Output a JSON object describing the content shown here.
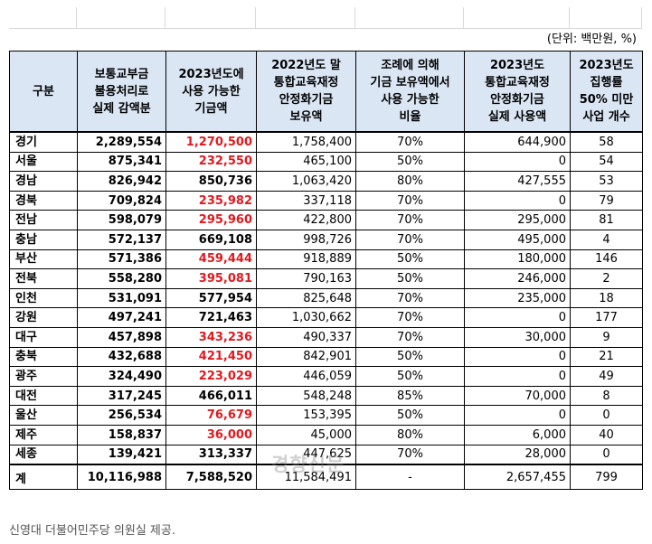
{
  "unit_note": "(단위: 백만원, %)",
  "columns": [
    {
      "key": "region",
      "lines": [
        "구분"
      ]
    },
    {
      "key": "c1",
      "lines": [
        "보통교부금",
        "불용처리로",
        "실제 감액분"
      ]
    },
    {
      "key": "c2",
      "lines": [
        "2023년도에",
        "사용 가능한",
        "기금액"
      ]
    },
    {
      "key": "c3",
      "lines": [
        "2022년도 말",
        "통합교육재정",
        "안정화기금",
        "보유액"
      ]
    },
    {
      "key": "c4",
      "lines": [
        "조례에 의해",
        "기금 보유액에서",
        "사용 가능한",
        "비율"
      ]
    },
    {
      "key": "c5",
      "lines": [
        "2023년도",
        "통합교육재정",
        "안정화기금",
        "실제 사용액"
      ]
    },
    {
      "key": "c6",
      "lines": [
        "2023년도",
        "집행률",
        "50% 미만",
        "사업 개수"
      ]
    }
  ],
  "rows": [
    {
      "region": "경기",
      "c1": "2,289,554",
      "c2": "1,270,500",
      "c2_red": true,
      "c3": "1,758,400",
      "c4": "70%",
      "c5": "644,900",
      "c6": "58"
    },
    {
      "region": "서울",
      "c1": "875,341",
      "c2": "232,550",
      "c2_red": true,
      "c3": "465,100",
      "c4": "50%",
      "c5": "0",
      "c6": "54"
    },
    {
      "region": "경남",
      "c1": "826,942",
      "c2": "850,736",
      "c2_red": false,
      "c3": "1,063,420",
      "c4": "80%",
      "c5": "427,555",
      "c6": "53"
    },
    {
      "region": "경북",
      "c1": "709,824",
      "c2": "235,982",
      "c2_red": true,
      "c3": "337,118",
      "c4": "70%",
      "c5": "0",
      "c6": "79"
    },
    {
      "region": "전남",
      "c1": "598,079",
      "c2": "295,960",
      "c2_red": true,
      "c3": "422,800",
      "c4": "70%",
      "c5": "295,000",
      "c6": "81"
    },
    {
      "region": "충남",
      "c1": "572,137",
      "c2": "669,108",
      "c2_red": false,
      "c3": "998,726",
      "c4": "70%",
      "c5": "495,000",
      "c6": "4"
    },
    {
      "region": "부산",
      "c1": "571,386",
      "c2": "459,444",
      "c2_red": true,
      "c3": "918,889",
      "c4": "50%",
      "c5": "180,000",
      "c6": "146"
    },
    {
      "region": "전북",
      "c1": "558,280",
      "c2": "395,081",
      "c2_red": true,
      "c3": "790,163",
      "c4": "50%",
      "c5": "246,000",
      "c6": "2"
    },
    {
      "region": "인천",
      "c1": "531,091",
      "c2": "577,954",
      "c2_red": false,
      "c3": "825,648",
      "c4": "70%",
      "c5": "235,000",
      "c6": "18"
    },
    {
      "region": "강원",
      "c1": "497,241",
      "c2": "721,463",
      "c2_red": false,
      "c3": "1,030,662",
      "c4": "70%",
      "c5": "0",
      "c6": "177"
    },
    {
      "region": "대구",
      "c1": "457,898",
      "c2": "343,236",
      "c2_red": true,
      "c3": "490,337",
      "c4": "70%",
      "c5": "30,000",
      "c6": "9"
    },
    {
      "region": "충북",
      "c1": "432,688",
      "c2": "421,450",
      "c2_red": true,
      "c3": "842,901",
      "c4": "50%",
      "c5": "0",
      "c6": "21"
    },
    {
      "region": "광주",
      "c1": "324,490",
      "c2": "223,029",
      "c2_red": true,
      "c3": "446,059",
      "c4": "50%",
      "c5": "0",
      "c6": "49"
    },
    {
      "region": "대전",
      "c1": "317,245",
      "c2": "466,011",
      "c2_red": false,
      "c3": "548,248",
      "c4": "85%",
      "c5": "70,000",
      "c6": "8"
    },
    {
      "region": "울산",
      "c1": "256,534",
      "c2": "76,679",
      "c2_red": true,
      "c3": "153,395",
      "c4": "50%",
      "c5": "0",
      "c6": "0"
    },
    {
      "region": "제주",
      "c1": "158,837",
      "c2": "36,000",
      "c2_red": true,
      "c3": "45,000",
      "c4": "80%",
      "c5": "6,000",
      "c6": "40"
    },
    {
      "region": "세종",
      "c1": "139,421",
      "c2": "313,337",
      "c2_red": false,
      "c3": "447,625",
      "c4": "70%",
      "c5": "28,000",
      "c6": "0"
    }
  ],
  "total": {
    "region": "계",
    "c1": "10,116,988",
    "c2": "7,588,520",
    "c3": "11,584,491",
    "c4": "-",
    "c5": "2,657,455",
    "c6": "799"
  },
  "footnote": "신영대 더불어민주당 의원실 제공.",
  "watermark": "경향신문",
  "colors": {
    "header_bg": "#dbe6f4",
    "highlight_red": "#e0191f"
  }
}
